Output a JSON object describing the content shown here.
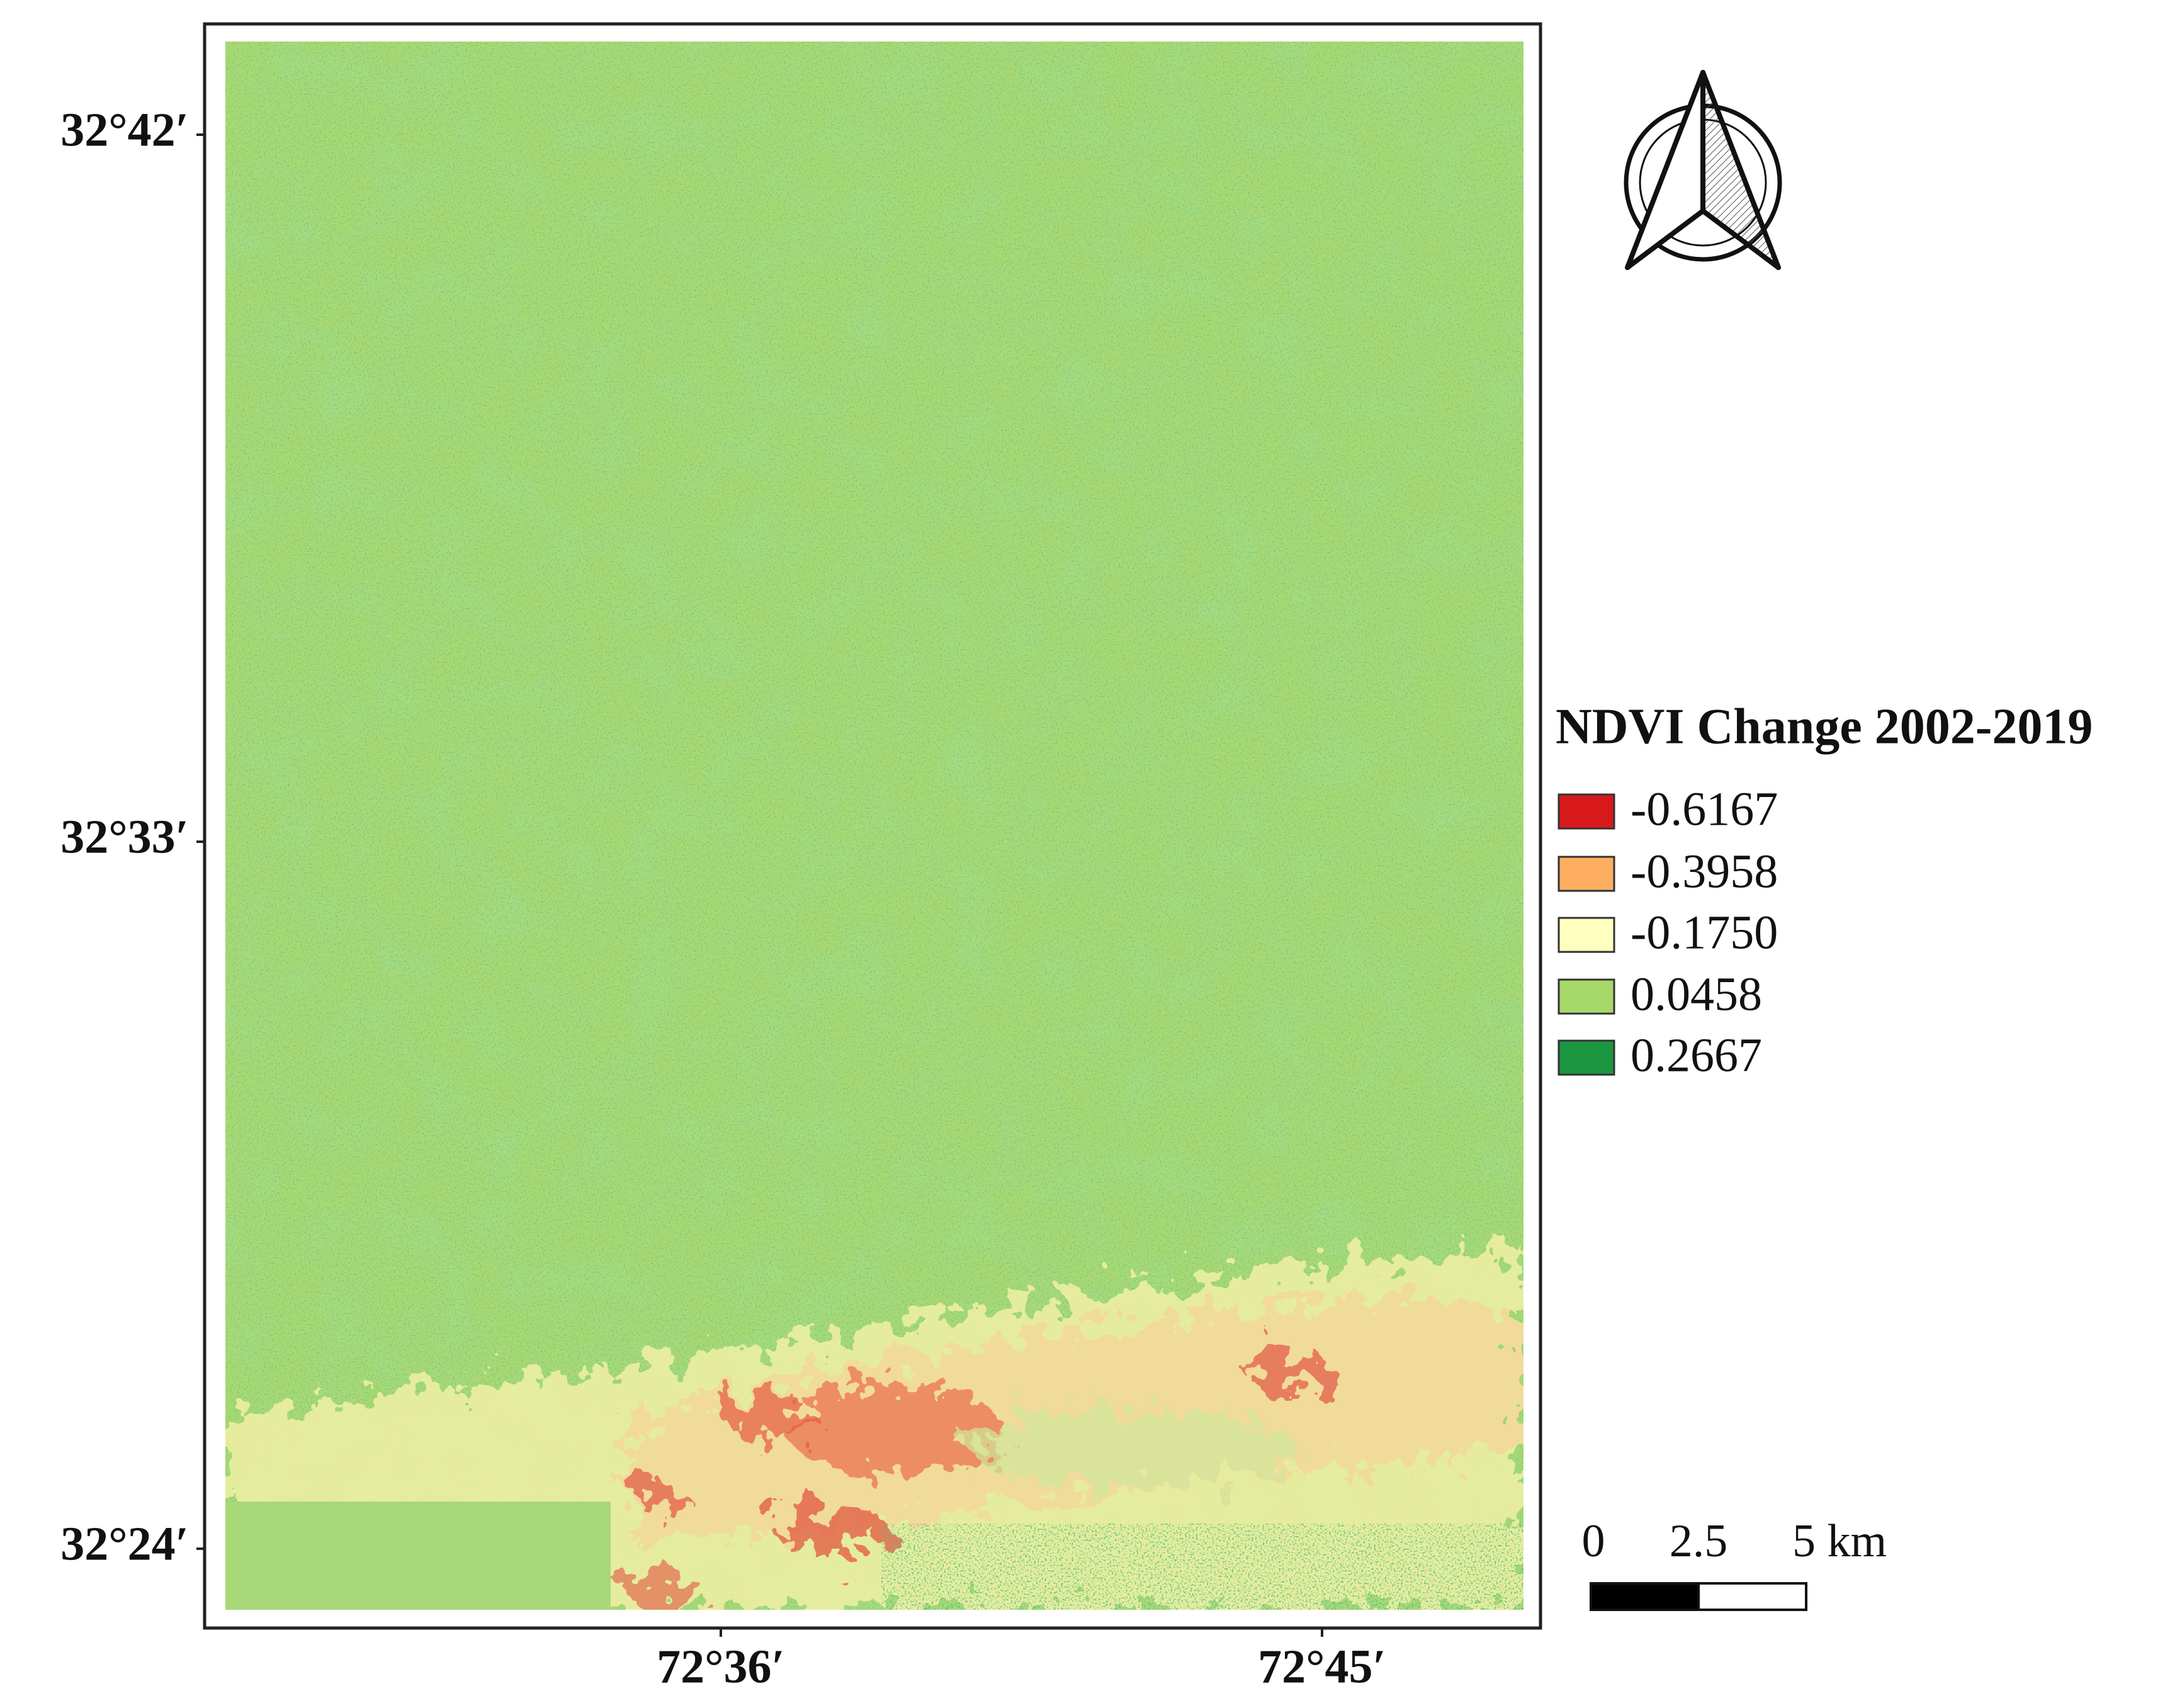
{
  "map": {
    "lat_labels": [
      "32°42′",
      "32°33′",
      "32°24′"
    ],
    "lon_labels": [
      "72°36′",
      "72°45′"
    ],
    "legend": {
      "title": "NDVI Change 2002-2019",
      "items": [
        {
          "label": "-0.6167",
          "color": "#d7191c"
        },
        {
          "label": "-0.3958",
          "color": "#fdae61"
        },
        {
          "label": "-0.1750",
          "color": "#ffffc0"
        },
        {
          "label": "0.0458",
          "color": "#a6d96a"
        },
        {
          "label": "0.2667",
          "color": "#1a9641"
        }
      ]
    },
    "scale_bar": {
      "labels": [
        "0",
        "2.5",
        "5 km"
      ]
    }
  }
}
